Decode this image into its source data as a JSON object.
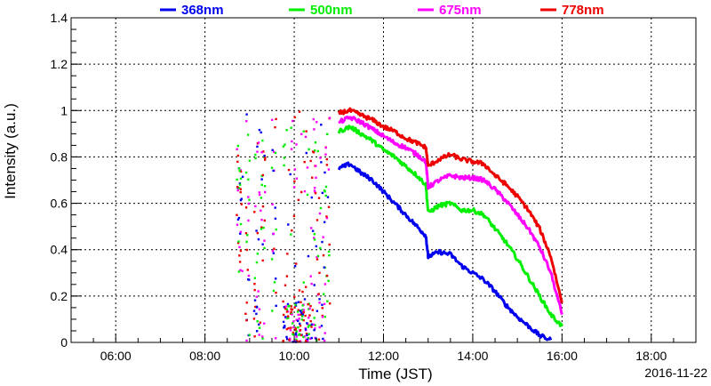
{
  "chart_data": {
    "type": "scatter",
    "title": "",
    "xlabel": "Time (JST)",
    "ylabel": "Intensity (a.u.)",
    "date_label": "2016-11-22",
    "xlim_hours": [
      5.0,
      19.0
    ],
    "ylim": [
      0,
      1.4
    ],
    "x_ticks": [
      "06:00",
      "08:00",
      "10:00",
      "12:00",
      "14:00",
      "16:00",
      "18:00"
    ],
    "x_tick_hours": [
      6,
      8,
      10,
      12,
      14,
      16,
      18
    ],
    "y_ticks": [
      "0",
      "0.2",
      "0.4",
      "0.6",
      "0.8",
      "1",
      "1.2",
      "1.4"
    ],
    "y_tick_values": [
      0,
      0.2,
      0.4,
      0.6,
      0.8,
      1.0,
      1.2,
      1.4
    ],
    "grid": true,
    "legend_placement": "top",
    "series": [
      {
        "name": "368nm",
        "color": "#0000ee",
        "x_hours": [
          11.0,
          11.25,
          11.5,
          11.75,
          12.0,
          12.25,
          12.5,
          12.75,
          12.95,
          13.0,
          13.25,
          13.5,
          13.75,
          14.0,
          14.25,
          14.5,
          14.75,
          15.0,
          15.25,
          15.5,
          15.75
        ],
        "values": [
          0.75,
          0.77,
          0.73,
          0.7,
          0.65,
          0.6,
          0.55,
          0.5,
          0.46,
          0.37,
          0.39,
          0.38,
          0.33,
          0.3,
          0.27,
          0.22,
          0.16,
          0.11,
          0.07,
          0.03,
          0.01
        ]
      },
      {
        "name": "500nm",
        "color": "#00ee00",
        "x_hours": [
          11.0,
          11.25,
          11.5,
          11.75,
          12.0,
          12.25,
          12.5,
          12.75,
          12.95,
          13.0,
          13.25,
          13.5,
          13.75,
          14.0,
          14.25,
          14.5,
          14.75,
          15.0,
          15.25,
          15.5,
          15.75,
          16.0
        ],
        "values": [
          0.91,
          0.93,
          0.9,
          0.87,
          0.83,
          0.8,
          0.76,
          0.72,
          0.68,
          0.56,
          0.59,
          0.6,
          0.57,
          0.57,
          0.55,
          0.49,
          0.43,
          0.36,
          0.28,
          0.2,
          0.12,
          0.07
        ]
      },
      {
        "name": "675nm",
        "color": "#ff00ff",
        "x_hours": [
          11.0,
          11.25,
          11.5,
          11.75,
          12.0,
          12.25,
          12.5,
          12.75,
          12.95,
          13.0,
          13.25,
          13.5,
          13.75,
          14.0,
          14.25,
          14.5,
          14.75,
          15.0,
          15.25,
          15.5,
          15.75,
          16.0
        ],
        "values": [
          0.95,
          0.97,
          0.95,
          0.92,
          0.89,
          0.86,
          0.84,
          0.81,
          0.78,
          0.67,
          0.7,
          0.72,
          0.71,
          0.71,
          0.7,
          0.66,
          0.61,
          0.55,
          0.49,
          0.41,
          0.3,
          0.12
        ]
      },
      {
        "name": "778nm",
        "color": "#ee0000",
        "x_hours": [
          11.0,
          11.25,
          11.5,
          11.75,
          12.0,
          12.25,
          12.5,
          12.75,
          12.95,
          13.0,
          13.25,
          13.5,
          13.75,
          14.0,
          14.25,
          14.5,
          14.75,
          15.0,
          15.25,
          15.5,
          15.75,
          16.0
        ],
        "values": [
          0.99,
          1.0,
          0.98,
          0.96,
          0.93,
          0.91,
          0.88,
          0.86,
          0.84,
          0.76,
          0.79,
          0.81,
          0.79,
          0.78,
          0.77,
          0.72,
          0.68,
          0.63,
          0.57,
          0.49,
          0.37,
          0.17
        ]
      }
    ]
  }
}
